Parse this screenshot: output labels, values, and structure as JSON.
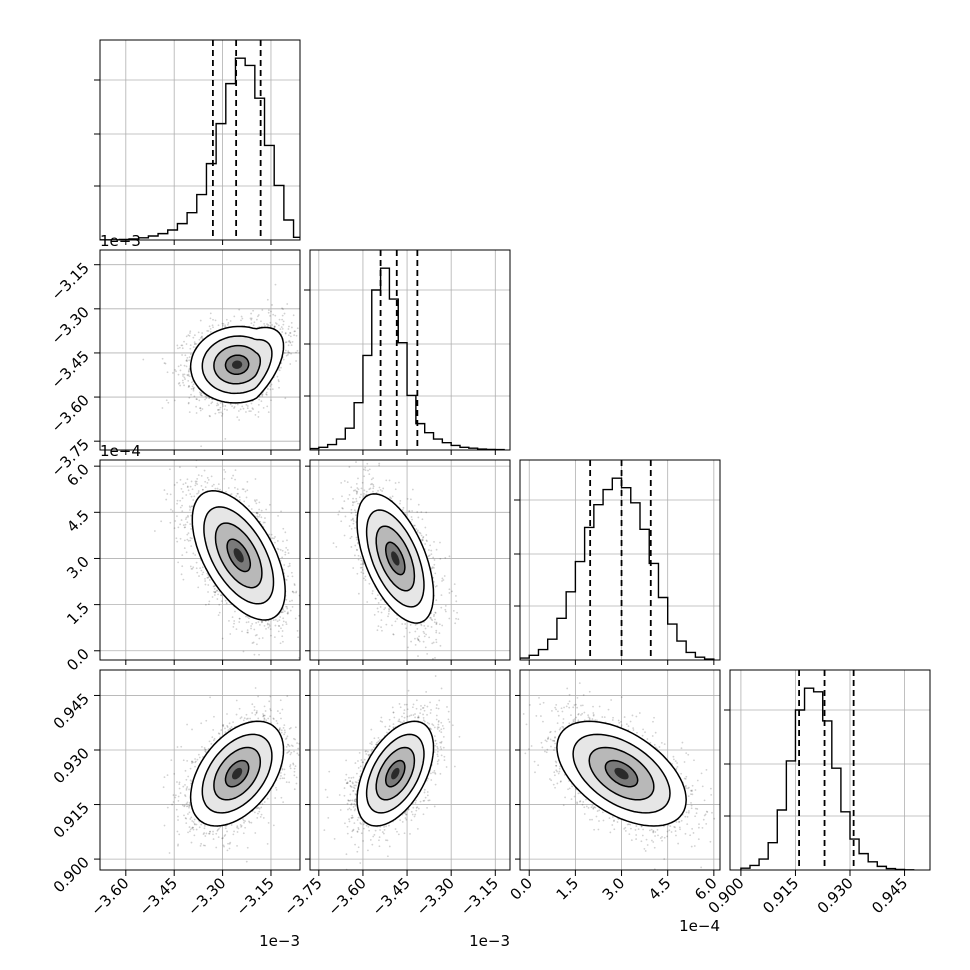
{
  "chart_data": {
    "type": "corner",
    "grid": true,
    "parameters": [
      {
        "index": 0,
        "range": [
          -3.68,
          -3.06
        ],
        "ticks": [
          -3.6,
          -3.45,
          -3.3,
          -3.15
        ],
        "tick_labels": [
          "−3.60",
          "−3.45",
          "−3.30",
          "−3.15"
        ],
        "offset_label": "1e−3"
      },
      {
        "index": 1,
        "range": [
          -3.78,
          -3.1
        ],
        "ticks": [
          -3.75,
          -3.6,
          -3.45,
          -3.3,
          -3.15
        ],
        "tick_labels": [
          "−3.75",
          "−3.60",
          "−3.45",
          "−3.30",
          "−3.15"
        ],
        "offset_label": "1e−3"
      },
      {
        "index": 2,
        "range": [
          -0.3,
          6.2
        ],
        "ticks": [
          0.0,
          1.5,
          3.0,
          4.5,
          6.0
        ],
        "tick_labels": [
          "0.0",
          "1.5",
          "3.0",
          "4.5",
          "6.0"
        ],
        "offset_label": "1e−4"
      },
      {
        "index": 3,
        "range": [
          0.897,
          0.952
        ],
        "ticks": [
          0.9,
          0.915,
          0.93,
          0.945
        ],
        "tick_labels": [
          "0.900",
          "0.915",
          "0.930",
          "0.945"
        ],
        "offset_label": ""
      }
    ],
    "histograms": [
      {
        "param": 0,
        "quantiles": [
          -3.33,
          -3.258,
          -3.182
        ],
        "bin_edges": [
          -3.68,
          -3.65,
          -3.62,
          -3.59,
          -3.56,
          -3.53,
          -3.5,
          -3.47,
          -3.44,
          -3.41,
          -3.38,
          -3.35,
          -3.32,
          -3.29,
          -3.26,
          -3.23,
          -3.2,
          -3.17,
          -3.14,
          -3.11,
          -3.08,
          -3.05
        ],
        "counts": [
          1,
          1,
          3,
          6,
          12,
          22,
          35,
          55,
          90,
          150,
          250,
          420,
          640,
          860,
          1000,
          960,
          780,
          520,
          300,
          110,
          15
        ]
      },
      {
        "param": 1,
        "quantiles": [
          -3.54,
          -3.485,
          -3.415
        ],
        "bin_edges": [
          -3.78,
          -3.75,
          -3.72,
          -3.69,
          -3.66,
          -3.63,
          -3.6,
          -3.57,
          -3.54,
          -3.51,
          -3.48,
          -3.45,
          -3.42,
          -3.39,
          -3.36,
          -3.33,
          -3.3,
          -3.27,
          -3.24,
          -3.21,
          -3.18,
          -3.15,
          -3.12
        ],
        "counts": [
          8,
          15,
          30,
          60,
          120,
          260,
          520,
          880,
          1000,
          830,
          590,
          300,
          145,
          95,
          60,
          40,
          25,
          15,
          10,
          5,
          3,
          2
        ]
      },
      {
        "param": 2,
        "quantiles": [
          1.98,
          3.0,
          3.95
        ],
        "bin_edges": [
          -0.3,
          0.0,
          0.3,
          0.6,
          0.9,
          1.2,
          1.5,
          1.8,
          2.1,
          2.4,
          2.7,
          3.0,
          3.3,
          3.6,
          3.9,
          4.2,
          4.5,
          4.8,
          5.1,
          5.4,
          5.7,
          6.0
        ],
        "counts": [
          10,
          25,
          55,
          110,
          220,
          360,
          520,
          700,
          820,
          900,
          960,
          910,
          830,
          690,
          510,
          330,
          190,
          100,
          40,
          15,
          5
        ]
      },
      {
        "param": 3,
        "quantiles": [
          0.916,
          0.923,
          0.931
        ],
        "bin_edges": [
          0.9,
          0.9025,
          0.905,
          0.9075,
          0.91,
          0.9125,
          0.915,
          0.9175,
          0.92,
          0.9225,
          0.925,
          0.9275,
          0.93,
          0.9325,
          0.935,
          0.9375,
          0.94,
          0.9425,
          0.945,
          0.9475
        ],
        "counts": [
          10,
          25,
          60,
          150,
          330,
          600,
          880,
          1000,
          980,
          820,
          560,
          320,
          170,
          90,
          45,
          20,
          8,
          3,
          1
        ]
      }
    ],
    "pairs": [
      {
        "x": 0,
        "y": 1,
        "center": [
          -3.255,
          -3.49
        ],
        "sd": [
          0.072,
          0.065
        ],
        "corr": 0.05,
        "skew": 0.8
      },
      {
        "x": 0,
        "y": 2,
        "center": [
          -3.25,
          3.1
        ],
        "sd": [
          0.072,
          1.05
        ],
        "corr": -0.55,
        "skew": 0.0
      },
      {
        "x": 1,
        "y": 2,
        "center": [
          -3.49,
          3.0
        ],
        "sd": [
          0.065,
          1.05
        ],
        "corr": -0.55,
        "skew": 0.0
      },
      {
        "x": 0,
        "y": 3,
        "center": [
          -3.255,
          0.9235
        ],
        "sd": [
          0.072,
          0.0072
        ],
        "corr": 0.45,
        "skew": 0.0
      },
      {
        "x": 1,
        "y": 3,
        "center": [
          -3.49,
          0.9235
        ],
        "sd": [
          0.065,
          0.0072
        ],
        "corr": 0.5,
        "skew": 0.0
      },
      {
        "x": 2,
        "y": 3,
        "center": [
          3.0,
          0.9235
        ],
        "sd": [
          1.05,
          0.0072
        ],
        "corr": -0.5,
        "skew": 0.0
      }
    ],
    "contour_levels_sigma": [
      0.5,
      1.0,
      1.5,
      2.0
    ]
  }
}
